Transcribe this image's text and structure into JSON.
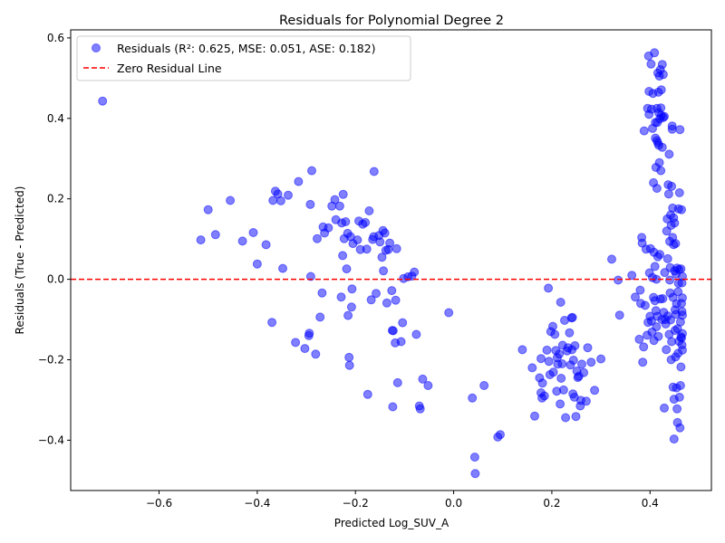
{
  "chart_data": {
    "type": "scatter",
    "title": "Residuals for Polynomial Degree 2",
    "xlabel": "Predicted Log_SUV_A",
    "ylabel": "Residuals (True - Predicted)",
    "xlim": [
      -0.78,
      0.525
    ],
    "ylim": [
      -0.525,
      0.62
    ],
    "xticks": [
      -0.6,
      -0.4,
      -0.2,
      0.0,
      0.2,
      0.4
    ],
    "xtick_labels": [
      "−0.6",
      "−0.4",
      "−0.2",
      "0.0",
      "0.2",
      "0.4"
    ],
    "yticks": [
      -0.4,
      -0.2,
      0.0,
      0.2,
      0.4,
      0.6
    ],
    "ytick_labels": [
      "−0.4",
      "−0.2",
      "0.0",
      "0.2",
      "0.4",
      "0.6"
    ],
    "grid": false,
    "legend_position": "top-left",
    "series": [
      {
        "name": "Residuals (R²: 0.625, MSE: 0.051, ASE: 0.182)",
        "kind": "scatter",
        "color": "#0000ff",
        "opacity": 0.5,
        "points": [
          [
            -0.715,
            0.443
          ],
          [
            -0.515,
            0.098
          ],
          [
            -0.5,
            0.173
          ],
          [
            -0.485,
            0.111
          ],
          [
            -0.455,
            0.196
          ],
          [
            -0.43,
            0.095
          ],
          [
            -0.408,
            0.116
          ],
          [
            -0.4,
            0.038
          ],
          [
            -0.382,
            0.086
          ],
          [
            -0.37,
            -0.107
          ],
          [
            -0.368,
            0.196
          ],
          [
            -0.363,
            0.219
          ],
          [
            -0.358,
            0.212
          ],
          [
            -0.352,
            0.195
          ],
          [
            -0.348,
            0.027
          ],
          [
            -0.337,
            0.209
          ],
          [
            -0.322,
            -0.157
          ],
          [
            -0.316,
            0.243
          ],
          [
            -0.303,
            -0.172
          ],
          [
            -0.295,
            -0.14
          ],
          [
            -0.294,
            -0.134
          ],
          [
            -0.292,
            0.186
          ],
          [
            -0.291,
            0.007
          ],
          [
            -0.289,
            0.27
          ],
          [
            -0.281,
            -0.186
          ],
          [
            -0.278,
            0.101
          ],
          [
            -0.272,
            -0.094
          ],
          [
            -0.268,
            -0.034
          ],
          [
            -0.266,
            0.13
          ],
          [
            -0.263,
            0.115
          ],
          [
            -0.255,
            0.128
          ],
          [
            -0.248,
            0.182
          ],
          [
            -0.242,
            0.198
          ],
          [
            -0.24,
            0.148
          ],
          [
            -0.232,
            0.182
          ],
          [
            -0.229,
            -0.044
          ],
          [
            -0.228,
            0.14
          ],
          [
            -0.226,
            0.059
          ],
          [
            -0.225,
            0.211
          ],
          [
            -0.223,
            0.101
          ],
          [
            -0.22,
            0.143
          ],
          [
            -0.218,
            0.026
          ],
          [
            -0.216,
            0.114
          ],
          [
            -0.215,
            -0.09
          ],
          [
            -0.213,
            -0.194
          ],
          [
            -0.212,
            -0.214
          ],
          [
            -0.21,
            0.106
          ],
          [
            -0.208,
            -0.069
          ],
          [
            -0.207,
            -0.024
          ],
          [
            -0.205,
            0.089
          ],
          [
            -0.196,
            0.098
          ],
          [
            -0.193,
            0.145
          ],
          [
            -0.19,
            0.074
          ],
          [
            -0.185,
            0.137
          ],
          [
            -0.18,
            0.141
          ],
          [
            -0.177,
            0.075
          ],
          [
            -0.175,
            -0.286
          ],
          [
            -0.172,
            0.17
          ],
          [
            -0.168,
            -0.051
          ],
          [
            -0.165,
            0.099
          ],
          [
            -0.163,
            0.106
          ],
          [
            -0.162,
            0.268
          ],
          [
            -0.158,
            -0.035
          ],
          [
            -0.152,
            0.109
          ],
          [
            -0.15,
            0.093
          ],
          [
            -0.146,
            0.055
          ],
          [
            -0.144,
            0.121
          ],
          [
            -0.143,
            0.021
          ],
          [
            -0.14,
            0.115
          ],
          [
            -0.138,
            0.072
          ],
          [
            -0.136,
            -0.059
          ],
          [
            -0.133,
            0.074
          ],
          [
            -0.13,
            0.09
          ],
          [
            -0.126,
            -0.028
          ],
          [
            -0.125,
            -0.127
          ],
          [
            -0.124,
            -0.317
          ],
          [
            -0.123,
            -0.128
          ],
          [
            -0.119,
            -0.158
          ],
          [
            -0.118,
            -0.052
          ],
          [
            -0.116,
            0.076
          ],
          [
            -0.114,
            -0.257
          ],
          [
            -0.107,
            -0.155
          ],
          [
            -0.104,
            -0.108
          ],
          [
            -0.102,
            0.002
          ],
          [
            -0.093,
            0.006
          ],
          [
            -0.085,
            0.008
          ],
          [
            -0.08,
            0.018
          ],
          [
            -0.076,
            -0.137
          ],
          [
            -0.07,
            -0.315
          ],
          [
            -0.068,
            -0.322
          ],
          [
            -0.063,
            -0.248
          ],
          [
            -0.052,
            -0.264
          ],
          [
            -0.01,
            -0.083
          ],
          [
            0.038,
            -0.295
          ],
          [
            0.043,
            -0.442
          ],
          [
            0.044,
            -0.483
          ],
          [
            0.062,
            -0.264
          ],
          [
            0.09,
            -0.392
          ],
          [
            0.095,
            -0.386
          ],
          [
            0.14,
            -0.175
          ],
          [
            0.16,
            -0.22
          ],
          [
            0.165,
            -0.34
          ],
          [
            0.175,
            -0.245
          ],
          [
            0.178,
            -0.197
          ],
          [
            0.178,
            -0.282
          ],
          [
            0.18,
            -0.295
          ],
          [
            0.181,
            -0.258
          ],
          [
            0.185,
            -0.29
          ],
          [
            0.19,
            -0.176
          ],
          [
            0.193,
            -0.022
          ],
          [
            0.194,
            -0.204
          ],
          [
            0.196,
            -0.237
          ],
          [
            0.198,
            -0.13
          ],
          [
            0.202,
            -0.117
          ],
          [
            0.203,
            -0.231
          ],
          [
            0.206,
            -0.137
          ],
          [
            0.208,
            -0.177
          ],
          [
            0.21,
            -0.278
          ],
          [
            0.211,
            -0.195
          ],
          [
            0.212,
            -0.211
          ],
          [
            0.215,
            -0.186
          ],
          [
            0.217,
            -0.31
          ],
          [
            0.218,
            -0.057
          ],
          [
            0.219,
            -0.246
          ],
          [
            0.221,
            -0.21
          ],
          [
            0.222,
            -0.164
          ],
          [
            0.224,
            -0.275
          ],
          [
            0.226,
            -0.102
          ],
          [
            0.228,
            -0.344
          ],
          [
            0.231,
            -0.178
          ],
          [
            0.233,
            -0.17
          ],
          [
            0.236,
            -0.133
          ],
          [
            0.238,
            -0.213
          ],
          [
            0.24,
            -0.096
          ],
          [
            0.241,
            -0.175
          ],
          [
            0.242,
            -0.095
          ],
          [
            0.243,
            -0.285
          ],
          [
            0.244,
            -0.201
          ],
          [
            0.246,
            -0.293
          ],
          [
            0.247,
            -0.165
          ],
          [
            0.249,
            -0.341
          ],
          [
            0.251,
            -0.228
          ],
          [
            0.253,
            -0.244
          ],
          [
            0.255,
            -0.241
          ],
          [
            0.258,
            -0.315
          ],
          [
            0.259,
            -0.301
          ],
          [
            0.261,
            -0.211
          ],
          [
            0.265,
            -0.232
          ],
          [
            0.27,
            -0.303
          ],
          [
            0.273,
            -0.17
          ],
          [
            0.28,
            -0.206
          ],
          [
            0.287,
            -0.276
          ],
          [
            0.3,
            -0.198
          ],
          [
            0.322,
            0.05
          ],
          [
            0.335,
            -0.002
          ],
          [
            0.338,
            -0.089
          ],
          [
            0.363,
            0.01
          ],
          [
            0.37,
            -0.044
          ],
          [
            0.378,
            -0.149
          ],
          [
            0.38,
            -0.027
          ],
          [
            0.381,
            -0.06
          ],
          [
            0.383,
            0.104
          ],
          [
            0.384,
            0.09
          ],
          [
            0.385,
            -0.206
          ],
          [
            0.387,
            -0.168
          ],
          [
            0.388,
            0.369
          ],
          [
            0.39,
            -0.065
          ],
          [
            0.392,
            0.075
          ],
          [
            0.394,
            -0.139
          ],
          [
            0.395,
            0.425
          ],
          [
            0.396,
            -0.107
          ],
          [
            0.397,
            0.555
          ],
          [
            0.398,
            0.467
          ],
          [
            0.398,
            0.41
          ],
          [
            0.399,
            0.016
          ],
          [
            0.4,
            -0.092
          ],
          [
            0.401,
            0.076
          ],
          [
            0.402,
            0.535
          ],
          [
            0.403,
            -0.104
          ],
          [
            0.403,
            0.423
          ],
          [
            0.404,
            -0.131
          ],
          [
            0.405,
            0.004
          ],
          [
            0.405,
            0.375
          ],
          [
            0.406,
            0.462
          ],
          [
            0.407,
            -0.045
          ],
          [
            0.407,
            0.24
          ],
          [
            0.408,
            0.067
          ],
          [
            0.408,
            -0.152
          ],
          [
            0.409,
            0.563
          ],
          [
            0.41,
            0.032
          ],
          [
            0.41,
            -0.053
          ],
          [
            0.411,
            0.351
          ],
          [
            0.411,
            0.39
          ],
          [
            0.412,
            -0.078
          ],
          [
            0.412,
            0.278
          ],
          [
            0.413,
            0.0
          ],
          [
            0.413,
            -0.118
          ],
          [
            0.414,
            0.345
          ],
          [
            0.414,
            0.425
          ],
          [
            0.414,
            0.226
          ],
          [
            0.415,
            -0.092
          ],
          [
            0.415,
            0.39
          ],
          [
            0.416,
            0.339
          ],
          [
            0.416,
            0.513
          ],
          [
            0.416,
            0.056
          ],
          [
            0.417,
            0.465
          ],
          [
            0.417,
            -0.142
          ],
          [
            0.418,
            0.414
          ],
          [
            0.418,
            0.333
          ],
          [
            0.419,
            0.505
          ],
          [
            0.419,
            0.29
          ],
          [
            0.42,
            0.399
          ],
          [
            0.42,
            0.062
          ],
          [
            0.421,
            0.521
          ],
          [
            0.421,
            -0.049
          ],
          [
            0.422,
            0.426
          ],
          [
            0.422,
            0.27
          ],
          [
            0.423,
            0.471
          ],
          [
            0.423,
            0.407
          ],
          [
            0.424,
            -0.1
          ],
          [
            0.425,
            0.534
          ],
          [
            0.425,
            0.328
          ],
          [
            0.426,
            -0.048
          ],
          [
            0.427,
            0.509
          ],
          [
            0.427,
            0.402
          ],
          [
            0.428,
            -0.082
          ],
          [
            0.429,
            -0.32
          ],
          [
            0.429,
            0.405
          ],
          [
            0.43,
            0.017
          ],
          [
            0.431,
            -0.1
          ],
          [
            0.432,
            -0.111
          ],
          [
            0.433,
            -0.175
          ],
          [
            0.434,
            0.12
          ],
          [
            0.435,
            0.15
          ],
          [
            0.436,
            0.051
          ],
          [
            0.436,
            -0.091
          ],
          [
            0.437,
            0.235
          ],
          [
            0.438,
            0.212
          ],
          [
            0.439,
            -0.137
          ],
          [
            0.439,
            0.311
          ],
          [
            0.44,
            0.094
          ],
          [
            0.44,
            -0.002
          ],
          [
            0.441,
            0.029
          ],
          [
            0.441,
            -0.034
          ],
          [
            0.442,
            0.16
          ],
          [
            0.442,
            -0.101
          ],
          [
            0.443,
            -0.2
          ],
          [
            0.443,
            0.134
          ],
          [
            0.444,
            0.231
          ],
          [
            0.444,
            -0.155
          ],
          [
            0.445,
            0.381
          ],
          [
            0.445,
            0.373
          ],
          [
            0.446,
            0.104
          ],
          [
            0.446,
            0.177
          ],
          [
            0.447,
            -0.268
          ],
          [
            0.447,
            -0.045
          ],
          [
            0.448,
            0.153
          ],
          [
            0.448,
            0.086
          ],
          [
            0.449,
            -0.397
          ],
          [
            0.449,
            -0.298
          ],
          [
            0.45,
            0.14
          ],
          [
            0.45,
            0.021
          ],
          [
            0.451,
            -0.076
          ],
          [
            0.451,
            -0.127
          ],
          [
            0.452,
            0.089
          ],
          [
            0.452,
            -0.193
          ],
          [
            0.453,
            0.013
          ],
          [
            0.453,
            -0.087
          ],
          [
            0.454,
            -0.27
          ],
          [
            0.454,
            -0.061
          ],
          [
            0.455,
            0.028
          ],
          [
            0.455,
            -0.322
          ],
          [
            0.456,
            -0.356
          ],
          [
            0.456,
            -0.123
          ],
          [
            0.457,
            -0.184
          ],
          [
            0.457,
            -0.031
          ],
          [
            0.458,
            0.175
          ],
          [
            0.458,
            -0.01
          ],
          [
            0.459,
            0.024
          ],
          [
            0.459,
            -0.154
          ],
          [
            0.46,
            -0.293
          ],
          [
            0.46,
            0.215
          ],
          [
            0.461,
            -0.369
          ],
          [
            0.461,
            0.372
          ],
          [
            0.462,
            -0.264
          ],
          [
            0.462,
            -0.106
          ],
          [
            0.463,
            0.026
          ],
          [
            0.463,
            -0.143
          ],
          [
            0.463,
            -0.218
          ],
          [
            0.464,
            -0.06
          ],
          [
            0.464,
            0.173
          ],
          [
            0.464,
            -0.146
          ],
          [
            0.465,
            -0.009
          ],
          [
            0.465,
            -0.08
          ],
          [
            0.465,
            -0.163
          ],
          [
            0.466,
            -0.046
          ],
          [
            0.466,
            0.007
          ],
          [
            0.466,
            -0.135
          ],
          [
            0.466,
            -0.089
          ],
          [
            0.466,
            -0.176
          ]
        ]
      },
      {
        "name": "Zero Residual Line",
        "kind": "hline",
        "y": 0,
        "color": "#ff0000",
        "dash": "dashed"
      }
    ]
  }
}
